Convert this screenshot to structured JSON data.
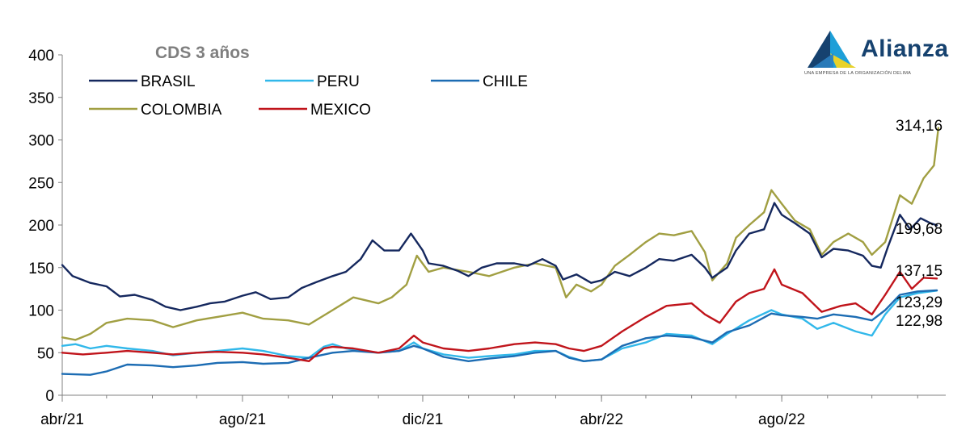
{
  "brand": {
    "name": "Alianza",
    "tagline": "UNA EMPRESA DE LA ORGANIZACIÓN DELIMA",
    "colors": {
      "dark": "#16426f",
      "light": "#1e9fd8",
      "yellow": "#e8d22a"
    }
  },
  "chart_data": {
    "type": "line",
    "title": "CDS 3 años",
    "xlabel": "",
    "ylabel": "",
    "ylim": [
      0,
      400
    ],
    "yticks": [
      0,
      50,
      100,
      150,
      200,
      250,
      300,
      350,
      400
    ],
    "xlim": [
      "2021-04-01",
      "2022-11-20"
    ],
    "xticks": [
      {
        "date": "2021-04-01",
        "label": "abr/21"
      },
      {
        "date": "2021-08-01",
        "label": "ago/21"
      },
      {
        "date": "2021-12-01",
        "label": "dic/21"
      },
      {
        "date": "2022-04-01",
        "label": "abr/22"
      },
      {
        "date": "2022-08-01",
        "label": "ago/22"
      }
    ],
    "grid": false,
    "legend": "top-left",
    "series": [
      {
        "name": "BRASIL",
        "color": "#15285e",
        "end_label": "199,68",
        "points": [
          [
            "2021-04-01",
            153
          ],
          [
            "2021-04-08",
            140
          ],
          [
            "2021-04-20",
            132
          ],
          [
            "2021-05-01",
            128
          ],
          [
            "2021-05-10",
            116
          ],
          [
            "2021-05-20",
            118
          ],
          [
            "2021-06-01",
            112
          ],
          [
            "2021-06-10",
            104
          ],
          [
            "2021-06-20",
            100
          ],
          [
            "2021-07-01",
            104
          ],
          [
            "2021-07-10",
            108
          ],
          [
            "2021-07-20",
            110
          ],
          [
            "2021-08-01",
            117
          ],
          [
            "2021-08-10",
            121
          ],
          [
            "2021-08-20",
            113
          ],
          [
            "2021-09-01",
            115
          ],
          [
            "2021-09-10",
            126
          ],
          [
            "2021-09-20",
            133
          ],
          [
            "2021-10-01",
            140
          ],
          [
            "2021-10-10",
            145
          ],
          [
            "2021-10-20",
            160
          ],
          [
            "2021-10-28",
            182
          ],
          [
            "2021-11-05",
            170
          ],
          [
            "2021-11-15",
            170
          ],
          [
            "2021-11-23",
            190
          ],
          [
            "2021-12-01",
            170
          ],
          [
            "2021-12-05",
            155
          ],
          [
            "2021-12-15",
            152
          ],
          [
            "2021-12-25",
            146
          ],
          [
            "2022-01-01",
            140
          ],
          [
            "2022-01-10",
            150
          ],
          [
            "2022-01-20",
            155
          ],
          [
            "2022-02-01",
            155
          ],
          [
            "2022-02-10",
            152
          ],
          [
            "2022-02-20",
            160
          ],
          [
            "2022-03-01",
            152
          ],
          [
            "2022-03-06",
            136
          ],
          [
            "2022-03-15",
            142
          ],
          [
            "2022-03-25",
            132
          ],
          [
            "2022-04-01",
            135
          ],
          [
            "2022-04-10",
            145
          ],
          [
            "2022-04-20",
            140
          ],
          [
            "2022-05-01",
            150
          ],
          [
            "2022-05-10",
            160
          ],
          [
            "2022-05-20",
            158
          ],
          [
            "2022-06-01",
            165
          ],
          [
            "2022-06-10",
            150
          ],
          [
            "2022-06-15",
            138
          ],
          [
            "2022-06-25",
            150
          ],
          [
            "2022-07-01",
            170
          ],
          [
            "2022-07-10",
            190
          ],
          [
            "2022-07-20",
            195
          ],
          [
            "2022-07-27",
            226
          ],
          [
            "2022-08-01",
            212
          ],
          [
            "2022-08-10",
            202
          ],
          [
            "2022-08-20",
            190
          ],
          [
            "2022-08-28",
            162
          ],
          [
            "2022-09-05",
            172
          ],
          [
            "2022-09-15",
            170
          ],
          [
            "2022-09-25",
            164
          ],
          [
            "2022-10-01",
            152
          ],
          [
            "2022-10-07",
            150
          ],
          [
            "2022-10-12",
            175
          ],
          [
            "2022-10-20",
            212
          ],
          [
            "2022-10-27",
            195
          ],
          [
            "2022-11-03",
            208
          ],
          [
            "2022-11-10",
            202
          ],
          [
            "2022-11-14",
            199.68
          ]
        ]
      },
      {
        "name": "PERU",
        "color": "#31b8ea",
        "end_label": "122,98",
        "points": [
          [
            "2021-04-01",
            58
          ],
          [
            "2021-04-10",
            60
          ],
          [
            "2021-04-20",
            55
          ],
          [
            "2021-05-01",
            58
          ],
          [
            "2021-05-15",
            55
          ],
          [
            "2021-06-01",
            52
          ],
          [
            "2021-06-15",
            47
          ],
          [
            "2021-07-01",
            50
          ],
          [
            "2021-07-15",
            52
          ],
          [
            "2021-08-01",
            55
          ],
          [
            "2021-08-15",
            52
          ],
          [
            "2021-09-01",
            46
          ],
          [
            "2021-09-15",
            44
          ],
          [
            "2021-09-25",
            57
          ],
          [
            "2021-10-01",
            60
          ],
          [
            "2021-10-10",
            55
          ],
          [
            "2021-10-20",
            52
          ],
          [
            "2021-11-01",
            50
          ],
          [
            "2021-11-15",
            52
          ],
          [
            "2021-11-25",
            62
          ],
          [
            "2021-12-01",
            55
          ],
          [
            "2021-12-15",
            48
          ],
          [
            "2022-01-01",
            44
          ],
          [
            "2022-01-15",
            46
          ],
          [
            "2022-02-01",
            48
          ],
          [
            "2022-02-15",
            52
          ],
          [
            "2022-03-01",
            52
          ],
          [
            "2022-03-10",
            45
          ],
          [
            "2022-03-20",
            40
          ],
          [
            "2022-04-01",
            42
          ],
          [
            "2022-04-15",
            55
          ],
          [
            "2022-05-01",
            62
          ],
          [
            "2022-05-15",
            72
          ],
          [
            "2022-06-01",
            70
          ],
          [
            "2022-06-15",
            60
          ],
          [
            "2022-06-25",
            72
          ],
          [
            "2022-07-10",
            88
          ],
          [
            "2022-07-25",
            100
          ],
          [
            "2022-08-01",
            95
          ],
          [
            "2022-08-15",
            90
          ],
          [
            "2022-08-25",
            78
          ],
          [
            "2022-09-05",
            85
          ],
          [
            "2022-09-20",
            75
          ],
          [
            "2022-10-01",
            70
          ],
          [
            "2022-10-10",
            95
          ],
          [
            "2022-10-20",
            115
          ],
          [
            "2022-11-01",
            120
          ],
          [
            "2022-11-14",
            122.98
          ]
        ]
      },
      {
        "name": "CHILE",
        "color": "#1c6cb3",
        "end_label": "123,29",
        "points": [
          [
            "2021-04-01",
            25
          ],
          [
            "2021-04-20",
            24
          ],
          [
            "2021-05-01",
            28
          ],
          [
            "2021-05-15",
            36
          ],
          [
            "2021-06-01",
            35
          ],
          [
            "2021-06-15",
            33
          ],
          [
            "2021-07-01",
            35
          ],
          [
            "2021-07-15",
            38
          ],
          [
            "2021-08-01",
            39
          ],
          [
            "2021-08-15",
            37
          ],
          [
            "2021-09-01",
            38
          ],
          [
            "2021-09-15",
            44
          ],
          [
            "2021-10-01",
            50
          ],
          [
            "2021-10-15",
            52
          ],
          [
            "2021-11-01",
            50
          ],
          [
            "2021-11-15",
            52
          ],
          [
            "2021-11-25",
            58
          ],
          [
            "2021-12-01",
            55
          ],
          [
            "2021-12-15",
            45
          ],
          [
            "2022-01-01",
            40
          ],
          [
            "2022-01-15",
            43
          ],
          [
            "2022-02-01",
            46
          ],
          [
            "2022-02-15",
            50
          ],
          [
            "2022-03-01",
            52
          ],
          [
            "2022-03-10",
            44
          ],
          [
            "2022-03-20",
            40
          ],
          [
            "2022-04-01",
            42
          ],
          [
            "2022-04-15",
            58
          ],
          [
            "2022-05-01",
            67
          ],
          [
            "2022-05-15",
            70
          ],
          [
            "2022-06-01",
            68
          ],
          [
            "2022-06-15",
            62
          ],
          [
            "2022-06-25",
            74
          ],
          [
            "2022-07-10",
            82
          ],
          [
            "2022-07-25",
            96
          ],
          [
            "2022-08-01",
            94
          ],
          [
            "2022-08-15",
            92
          ],
          [
            "2022-08-25",
            90
          ],
          [
            "2022-09-05",
            95
          ],
          [
            "2022-09-20",
            92
          ],
          [
            "2022-10-01",
            88
          ],
          [
            "2022-10-10",
            100
          ],
          [
            "2022-10-20",
            118
          ],
          [
            "2022-11-01",
            122
          ],
          [
            "2022-11-14",
            123.29
          ]
        ]
      },
      {
        "name": "COLOMBIA",
        "color": "#a19f42",
        "end_label": "314,16",
        "points": [
          [
            "2021-04-01",
            68
          ],
          [
            "2021-04-10",
            65
          ],
          [
            "2021-04-20",
            72
          ],
          [
            "2021-05-01",
            85
          ],
          [
            "2021-05-15",
            90
          ],
          [
            "2021-06-01",
            88
          ],
          [
            "2021-06-15",
            80
          ],
          [
            "2021-07-01",
            88
          ],
          [
            "2021-07-15",
            92
          ],
          [
            "2021-08-01",
            97
          ],
          [
            "2021-08-15",
            90
          ],
          [
            "2021-09-01",
            88
          ],
          [
            "2021-09-15",
            83
          ],
          [
            "2021-10-01",
            100
          ],
          [
            "2021-10-15",
            115
          ],
          [
            "2021-11-01",
            108
          ],
          [
            "2021-11-10",
            115
          ],
          [
            "2021-11-20",
            130
          ],
          [
            "2021-11-27",
            164
          ],
          [
            "2021-12-05",
            145
          ],
          [
            "2021-12-15",
            150
          ],
          [
            "2022-01-01",
            145
          ],
          [
            "2022-01-15",
            140
          ],
          [
            "2022-02-01",
            150
          ],
          [
            "2022-02-15",
            155
          ],
          [
            "2022-03-01",
            150
          ],
          [
            "2022-03-08",
            115
          ],
          [
            "2022-03-15",
            130
          ],
          [
            "2022-03-25",
            122
          ],
          [
            "2022-04-01",
            130
          ],
          [
            "2022-04-10",
            152
          ],
          [
            "2022-04-20",
            165
          ],
          [
            "2022-05-01",
            180
          ],
          [
            "2022-05-10",
            190
          ],
          [
            "2022-05-20",
            188
          ],
          [
            "2022-06-01",
            193
          ],
          [
            "2022-06-10",
            168
          ],
          [
            "2022-06-15",
            135
          ],
          [
            "2022-06-25",
            155
          ],
          [
            "2022-07-01",
            185
          ],
          [
            "2022-07-10",
            200
          ],
          [
            "2022-07-20",
            215
          ],
          [
            "2022-07-25",
            241
          ],
          [
            "2022-08-01",
            225
          ],
          [
            "2022-08-10",
            205
          ],
          [
            "2022-08-20",
            195
          ],
          [
            "2022-08-28",
            165
          ],
          [
            "2022-09-05",
            180
          ],
          [
            "2022-09-15",
            190
          ],
          [
            "2022-09-25",
            180
          ],
          [
            "2022-10-01",
            165
          ],
          [
            "2022-10-10",
            180
          ],
          [
            "2022-10-20",
            235
          ],
          [
            "2022-10-28",
            225
          ],
          [
            "2022-11-05",
            255
          ],
          [
            "2022-11-12",
            270
          ],
          [
            "2022-11-15",
            314.16
          ]
        ]
      },
      {
        "name": "MEXICO",
        "color": "#c0141b",
        "end_label": "137,15",
        "points": [
          [
            "2021-04-01",
            50
          ],
          [
            "2021-04-15",
            48
          ],
          [
            "2021-05-01",
            50
          ],
          [
            "2021-05-15",
            52
          ],
          [
            "2021-06-01",
            50
          ],
          [
            "2021-06-15",
            48
          ],
          [
            "2021-07-01",
            50
          ],
          [
            "2021-07-15",
            51
          ],
          [
            "2021-08-01",
            50
          ],
          [
            "2021-08-15",
            48
          ],
          [
            "2021-09-01",
            44
          ],
          [
            "2021-09-15",
            40
          ],
          [
            "2021-09-25",
            55
          ],
          [
            "2021-10-01",
            57
          ],
          [
            "2021-10-15",
            55
          ],
          [
            "2021-11-01",
            50
          ],
          [
            "2021-11-15",
            55
          ],
          [
            "2021-11-25",
            70
          ],
          [
            "2021-12-01",
            62
          ],
          [
            "2021-12-15",
            55
          ],
          [
            "2022-01-01",
            52
          ],
          [
            "2022-01-15",
            55
          ],
          [
            "2022-02-01",
            60
          ],
          [
            "2022-02-15",
            62
          ],
          [
            "2022-03-01",
            60
          ],
          [
            "2022-03-10",
            55
          ],
          [
            "2022-03-20",
            52
          ],
          [
            "2022-04-01",
            58
          ],
          [
            "2022-04-15",
            75
          ],
          [
            "2022-05-01",
            92
          ],
          [
            "2022-05-15",
            105
          ],
          [
            "2022-06-01",
            108
          ],
          [
            "2022-06-10",
            95
          ],
          [
            "2022-06-20",
            85
          ],
          [
            "2022-07-01",
            110
          ],
          [
            "2022-07-10",
            120
          ],
          [
            "2022-07-20",
            125
          ],
          [
            "2022-07-27",
            148
          ],
          [
            "2022-08-01",
            130
          ],
          [
            "2022-08-15",
            120
          ],
          [
            "2022-08-28",
            98
          ],
          [
            "2022-09-10",
            105
          ],
          [
            "2022-09-20",
            108
          ],
          [
            "2022-10-01",
            95
          ],
          [
            "2022-10-10",
            118
          ],
          [
            "2022-10-20",
            145
          ],
          [
            "2022-10-28",
            125
          ],
          [
            "2022-11-05",
            138
          ],
          [
            "2022-11-14",
            137.15
          ]
        ]
      }
    ]
  }
}
